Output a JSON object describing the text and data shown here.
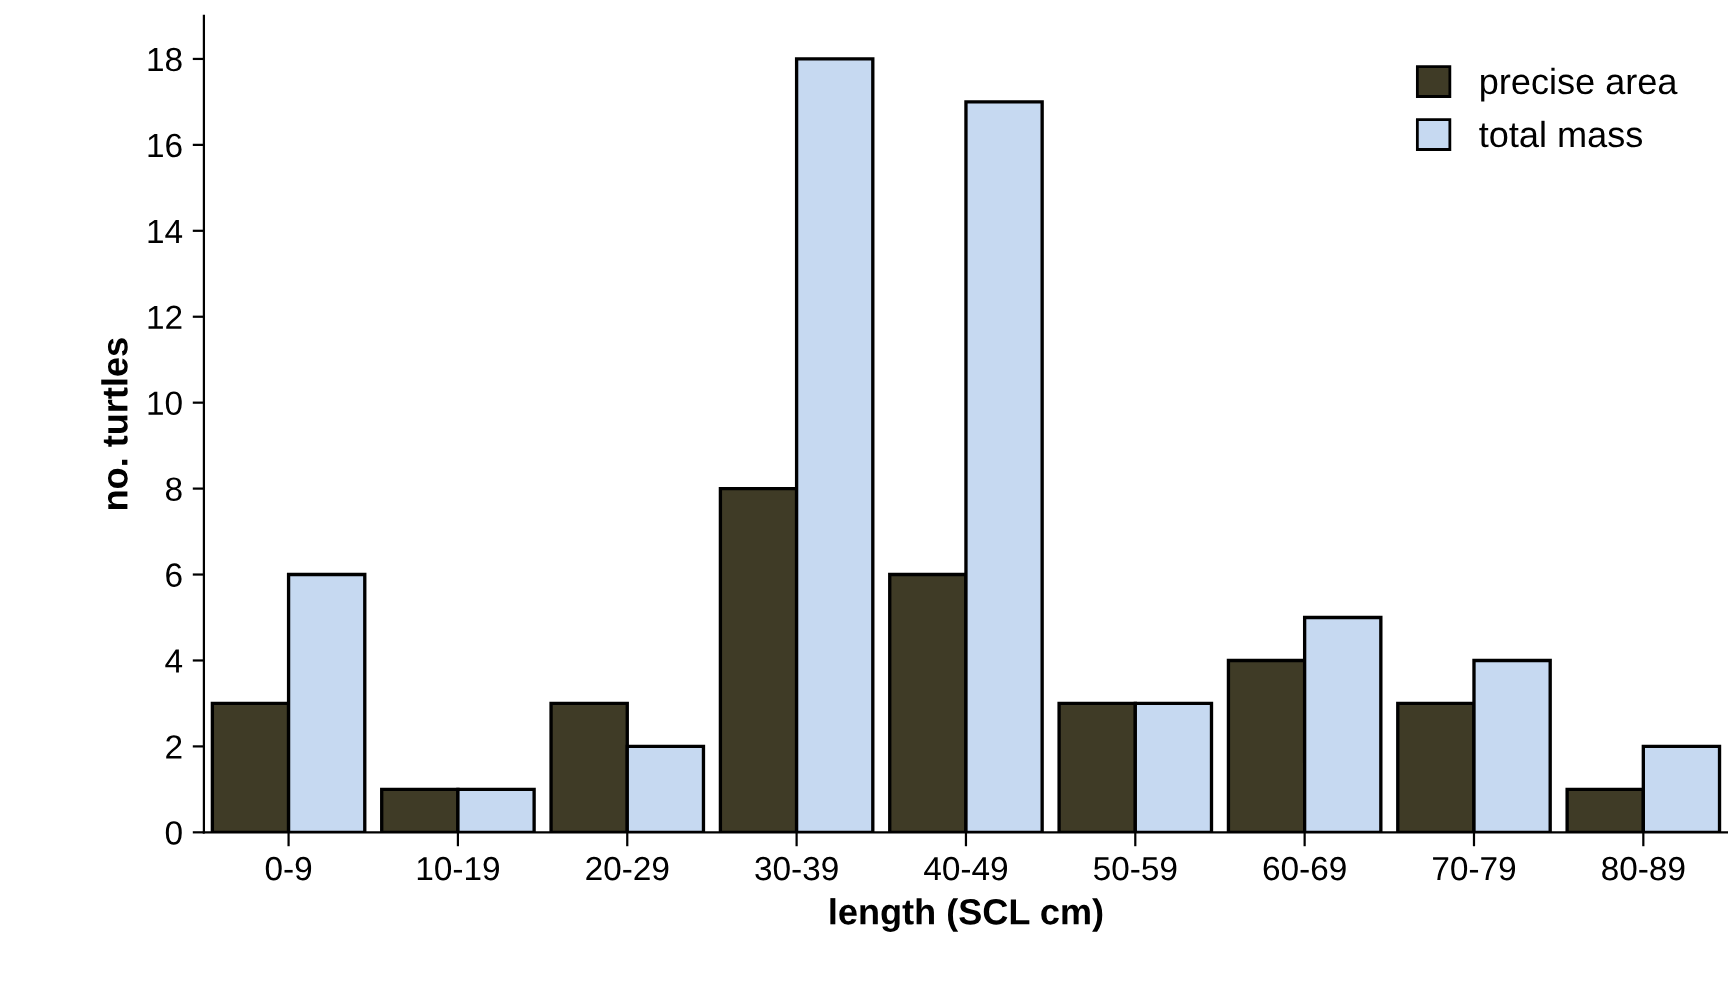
{
  "chart_data": {
    "type": "bar",
    "xlabel": "length (SCL cm)",
    "ylabel": "no. turtles",
    "categories": [
      "0-9",
      "10-19",
      "20-29",
      "30-39",
      "40-49",
      "50-59",
      "60-69",
      "70-79",
      "80-89"
    ],
    "series": [
      {
        "name": "precise area",
        "color": "#3f3b26",
        "values": [
          3,
          1,
          3,
          8,
          6,
          3,
          4,
          3,
          1
        ]
      },
      {
        "name": "total mass",
        "color": "#c6d9f1",
        "values": [
          6,
          1,
          2,
          18,
          17,
          3,
          5,
          4,
          2
        ]
      }
    ],
    "ylim": [
      0,
      19
    ],
    "yticks": [
      0,
      2,
      4,
      6,
      8,
      10,
      12,
      14,
      16,
      18
    ],
    "grid": false,
    "legend": "top right"
  }
}
